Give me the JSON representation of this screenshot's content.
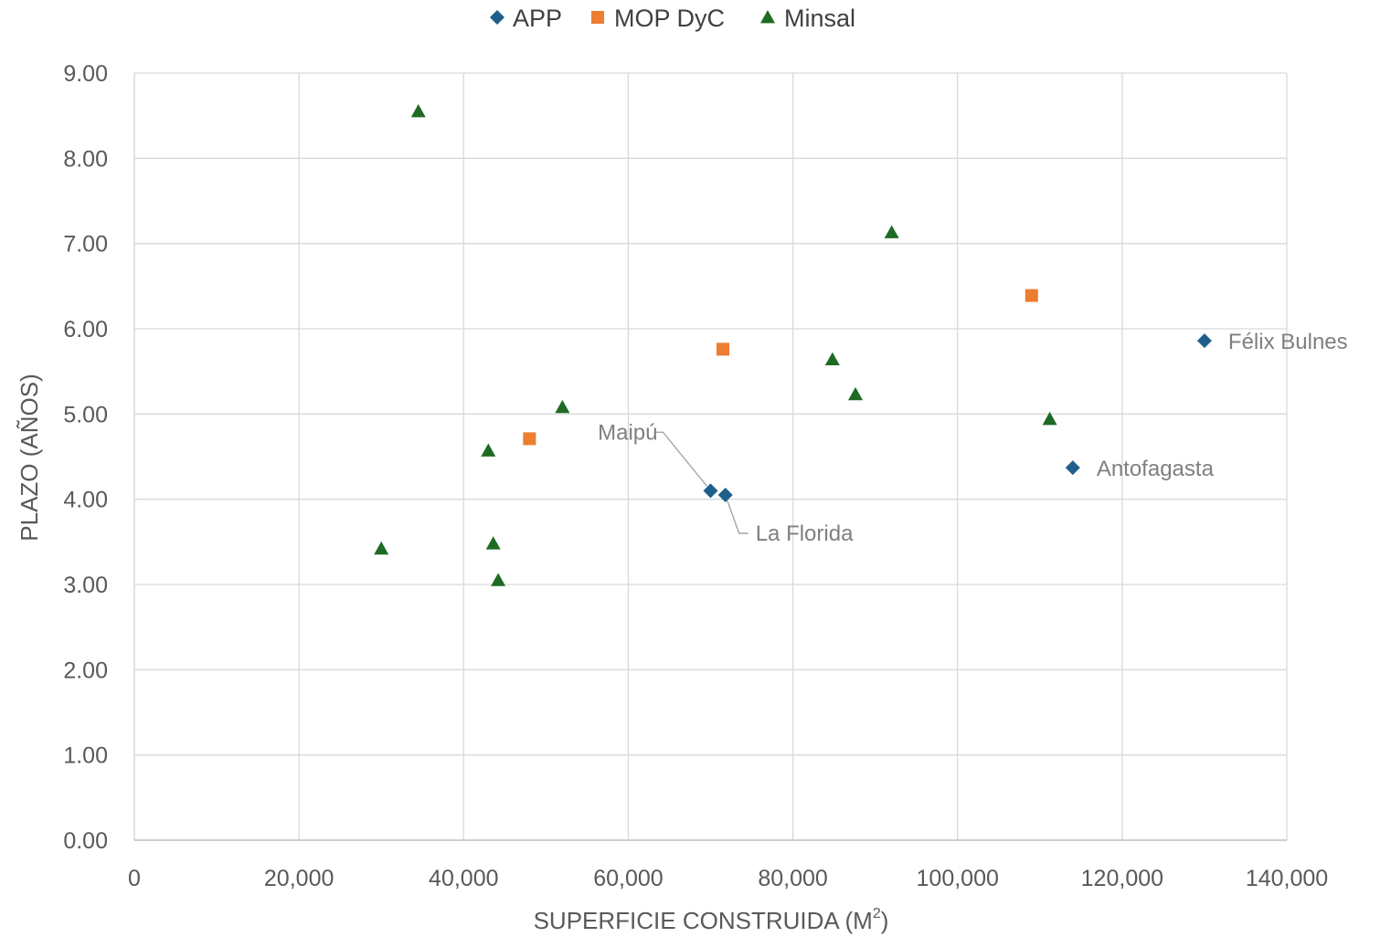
{
  "chart_data": {
    "type": "scatter",
    "xlabel": "SUPERFICIE CONSTRUIDA (M",
    "xlabel_superscript": "2",
    "xlabel_close": ")",
    "ylabel": "PLAZO (AÑOS)",
    "xlim": [
      0,
      140000
    ],
    "ylim": [
      0,
      9
    ],
    "x_ticks": [
      "0",
      "20,000",
      "40,000",
      "60,000",
      "80,000",
      "100,000",
      "120,000",
      "140,000"
    ],
    "y_ticks": [
      "0.00",
      "1.00",
      "2.00",
      "3.00",
      "4.00",
      "5.00",
      "6.00",
      "7.00",
      "8.00",
      "9.00"
    ],
    "grid": true,
    "legend_position": "top",
    "series": [
      {
        "name": "APP",
        "marker": "diamond",
        "color": "#1f5f8b",
        "points": [
          {
            "x": 70000,
            "y": 4.1,
            "label": "Maipú"
          },
          {
            "x": 71800,
            "y": 4.05,
            "label": "La Florida"
          },
          {
            "x": 114000,
            "y": 4.37,
            "label": "Antofagasta"
          },
          {
            "x": 130000,
            "y": 5.86,
            "label": "Félix Bulnes"
          }
        ]
      },
      {
        "name": "MOP DyC",
        "marker": "square",
        "color": "#ed7d31",
        "points": [
          {
            "x": 48000,
            "y": 4.71
          },
          {
            "x": 71500,
            "y": 5.76
          },
          {
            "x": 109000,
            "y": 6.39
          }
        ]
      },
      {
        "name": "Minsal",
        "marker": "triangle",
        "color": "#1e6b24",
        "points": [
          {
            "x": 34500,
            "y": 8.55
          },
          {
            "x": 30000,
            "y": 3.42
          },
          {
            "x": 43000,
            "y": 4.57
          },
          {
            "x": 43600,
            "y": 3.48
          },
          {
            "x": 44200,
            "y": 3.05
          },
          {
            "x": 52000,
            "y": 5.08
          },
          {
            "x": 84800,
            "y": 5.64
          },
          {
            "x": 87600,
            "y": 5.23
          },
          {
            "x": 92000,
            "y": 7.13
          },
          {
            "x": 111200,
            "y": 4.94
          }
        ]
      }
    ]
  }
}
